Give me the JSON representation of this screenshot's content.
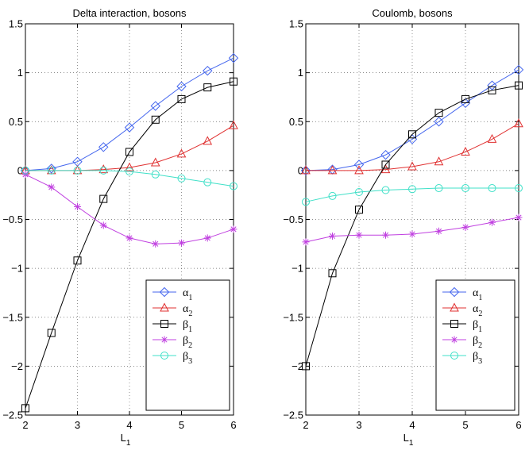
{
  "chart_data": [
    {
      "type": "line",
      "title": "Delta interaction, bosons",
      "xlabel": "L",
      "xlabel_sub": "1",
      "ylabel": "",
      "xlim": [
        2,
        6
      ],
      "ylim": [
        -2.5,
        1.5
      ],
      "xticks": [
        "2",
        "3",
        "4",
        "5",
        "6"
      ],
      "yticks": [
        "1.5",
        "1",
        "0.5",
        "0",
        "−0.5",
        "−1",
        "−1.5",
        "−2",
        "−2.5"
      ],
      "grid": true,
      "legend_position": "lower-right",
      "x": [
        2,
        2.5,
        3,
        3.5,
        4,
        4.5,
        5,
        5.5,
        6
      ],
      "series": [
        {
          "name": "α",
          "sub": "1",
          "marker": "diamond",
          "color": "#4466ee",
          "values": [
            0.0,
            0.02,
            0.09,
            0.24,
            0.44,
            0.66,
            0.86,
            1.02,
            1.15
          ]
        },
        {
          "name": "α",
          "sub": "2",
          "marker": "triangle",
          "color": "#e03030",
          "values": [
            0.0,
            0.0,
            0.0,
            0.01,
            0.03,
            0.08,
            0.17,
            0.3,
            0.46
          ]
        },
        {
          "name": "β",
          "sub": "1",
          "marker": "square",
          "color": "#000000",
          "values": [
            -2.43,
            -1.66,
            -0.92,
            -0.29,
            0.19,
            0.52,
            0.73,
            0.85,
            0.91
          ]
        },
        {
          "name": "β",
          "sub": "2",
          "marker": "star",
          "color": "#c040e0",
          "values": [
            -0.04,
            -0.17,
            -0.37,
            -0.56,
            -0.69,
            -0.75,
            -0.74,
            -0.69,
            -0.6
          ]
        },
        {
          "name": "β",
          "sub": "3",
          "marker": "circle",
          "color": "#40e0c8",
          "values": [
            0.0,
            0.0,
            0.0,
            0.0,
            -0.01,
            -0.04,
            -0.08,
            -0.12,
            -0.16
          ]
        }
      ]
    },
    {
      "type": "line",
      "title": "Coulomb, bosons",
      "xlabel": "L",
      "xlabel_sub": "1",
      "ylabel": "",
      "xlim": [
        2,
        6
      ],
      "ylim": [
        -2.5,
        1.5
      ],
      "xticks": [
        "2",
        "3",
        "4",
        "5",
        "6"
      ],
      "yticks": [
        "1.5",
        "1",
        "0.5",
        "0",
        "−0.5",
        "−1",
        "−1.5",
        "−2",
        "−2.5"
      ],
      "grid": true,
      "legend_position": "lower-right",
      "x": [
        2,
        2.5,
        3,
        3.5,
        4,
        4.5,
        5,
        5.5,
        6
      ],
      "series": [
        {
          "name": "α",
          "sub": "1",
          "marker": "diamond",
          "color": "#4466ee",
          "values": [
            0.0,
            0.01,
            0.06,
            0.16,
            0.32,
            0.5,
            0.69,
            0.87,
            1.03
          ]
        },
        {
          "name": "α",
          "sub": "2",
          "marker": "triangle",
          "color": "#e03030",
          "values": [
            0.0,
            0.0,
            0.0,
            0.01,
            0.04,
            0.09,
            0.19,
            0.32,
            0.48
          ]
        },
        {
          "name": "β",
          "sub": "1",
          "marker": "square",
          "color": "#000000",
          "values": [
            -2.0,
            -1.05,
            -0.4,
            0.06,
            0.37,
            0.59,
            0.73,
            0.82,
            0.87
          ]
        },
        {
          "name": "β",
          "sub": "2",
          "marker": "star",
          "color": "#c040e0",
          "values": [
            -0.73,
            -0.67,
            -0.66,
            -0.66,
            -0.65,
            -0.62,
            -0.58,
            -0.53,
            -0.48
          ]
        },
        {
          "name": "β",
          "sub": "3",
          "marker": "circle",
          "color": "#40e0c8",
          "values": [
            -0.32,
            -0.26,
            -0.22,
            -0.2,
            -0.19,
            -0.18,
            -0.18,
            -0.18,
            -0.18
          ]
        }
      ]
    }
  ]
}
